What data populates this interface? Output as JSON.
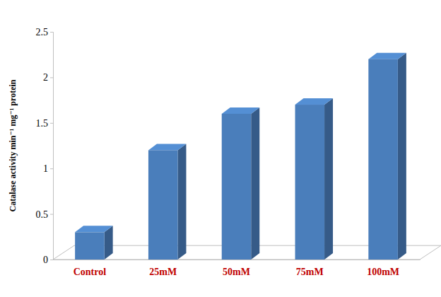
{
  "chart_data": {
    "type": "bar",
    "y_label": "Catalase activity min⁻¹ mg⁻¹ protein",
    "categories": [
      "Control",
      "25mM",
      "50mM",
      "75mM",
      "100mM"
    ],
    "values": [
      0.3,
      1.2,
      1.6,
      1.7,
      2.2
    ],
    "color": "#4a7ebb",
    "ylim": [
      0,
      2.5
    ],
    "yticks": [
      0,
      0.5,
      1,
      1.5,
      2,
      2.5
    ],
    "grid": false
  }
}
